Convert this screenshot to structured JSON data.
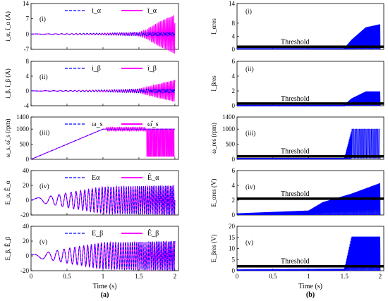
{
  "colors": {
    "measured": "#0000ff",
    "estimated": "#ff00ff",
    "threshold": "#000000",
    "residual": "#0000ff"
  },
  "x_axis": {
    "label": "Time (s)",
    "ticks": [
      "0",
      "0.5",
      "1",
      "1.5",
      "2"
    ],
    "range": [
      0,
      2.05
    ]
  },
  "captions": {
    "left": "(a)",
    "right": "(b)"
  },
  "chart_data": [
    {
      "type": "line",
      "panel": "(i)",
      "ylabel": "i_α, î_α (A)",
      "ylim": [
        -7,
        14
      ],
      "yticks": [
        "-7",
        "0",
        "7",
        "14"
      ],
      "series": [
        {
          "name": "i_α"
        },
        {
          "name": "î_α"
        }
      ],
      "x": [
        0,
        0.5,
        1.0,
        1.5,
        1.6,
        1.8,
        2.0
      ],
      "envelope": [
        0.05,
        0.2,
        0.4,
        0.8,
        2.0,
        6.0,
        9.0
      ]
    },
    {
      "type": "line",
      "panel": "(ii)",
      "ylabel": "i_β, î_β (A)",
      "ylim": [
        -4,
        8
      ],
      "yticks": [
        "-4",
        "0",
        "4",
        "8"
      ],
      "series": [
        {
          "name": "i_β"
        },
        {
          "name": "î_β"
        }
      ],
      "x": [
        0,
        0.5,
        1.0,
        1.5,
        1.6,
        1.8,
        2.0
      ],
      "envelope": [
        0.02,
        0.1,
        0.25,
        0.5,
        1.0,
        2.0,
        3.0
      ]
    },
    {
      "type": "line",
      "panel": "(iii)",
      "ylabel": "ω_s, ω̂_s (rpm)",
      "ylim": [
        0,
        1400
      ],
      "yticks": [
        "0",
        "500",
        "1000",
        "1400"
      ],
      "series": [
        {
          "name": "ω_s"
        },
        {
          "name": "ω̂_s"
        }
      ],
      "speed_profile": {
        "x": [
          0,
          1.0,
          2.0
        ],
        "y": [
          0,
          1000,
          1000
        ]
      },
      "estimate_oscillation": {
        "x_start": 1.6,
        "low": 100,
        "high": 1000
      }
    },
    {
      "type": "line",
      "panel": "(iv)",
      "ylabel": "E_α, Ê_α",
      "ylim": [
        -20,
        40
      ],
      "yticks": [
        "-20",
        "0",
        "20",
        "40"
      ],
      "series": [
        {
          "name": "Eα"
        },
        {
          "name": "Ê_α"
        }
      ],
      "x": [
        0,
        0.3,
        0.5,
        1.0,
        2.0
      ],
      "envelope": [
        2,
        6,
        10,
        18,
        20
      ]
    },
    {
      "type": "line",
      "panel": "(v)",
      "ylabel": "E_β, Ê_β",
      "ylim": [
        -20,
        40
      ],
      "yticks": [
        "-20",
        "0",
        "20",
        "40"
      ],
      "series": [
        {
          "name": "E_β"
        },
        {
          "name": "Ê_β"
        }
      ],
      "x": [
        0,
        0.3,
        0.5,
        1.0,
        2.0
      ],
      "envelope": [
        2,
        6,
        10,
        18,
        20
      ]
    },
    {
      "type": "line",
      "panel": "(i)",
      "ylabel": "I_αres",
      "ylim": [
        0,
        14
      ],
      "yticks": [
        "0",
        "4",
        "8",
        "14"
      ],
      "threshold": 0.8,
      "threshold_label": "Threshold",
      "residual": {
        "x": [
          0,
          1.5,
          1.6,
          1.8,
          2.0
        ],
        "peak": [
          0.3,
          0.3,
          3,
          7,
          8
        ]
      }
    },
    {
      "type": "line",
      "panel": "(ii)",
      "ylabel": "I_βres",
      "ylim": [
        0,
        6
      ],
      "yticks": [
        "0",
        "2",
        "4",
        "6"
      ],
      "threshold": 0.3,
      "threshold_label": "Threshold",
      "residual": {
        "x": [
          0,
          1.5,
          1.6,
          1.8,
          2.0
        ],
        "peak": [
          0.1,
          0.1,
          1.0,
          2.0,
          2.0
        ]
      }
    },
    {
      "type": "line",
      "panel": "(iii)",
      "ylabel": "ω_res (rpm)",
      "ylim": [
        0,
        1400
      ],
      "yticks": [
        "0",
        "500",
        "1000",
        "1400"
      ],
      "threshold": 100,
      "threshold_label": "Threshold",
      "residual": {
        "x": [
          0,
          1.5,
          1.6,
          2.0
        ],
        "peak": [
          40,
          40,
          1000,
          1000
        ]
      }
    },
    {
      "type": "line",
      "panel": "(iv)",
      "ylabel": "E_αres (V)",
      "ylim": [
        0,
        6
      ],
      "yticks": [
        "0",
        "2",
        "4",
        "6"
      ],
      "threshold": 2.2,
      "threshold_label": "Threshold",
      "residual": {
        "x": [
          0,
          1.0,
          1.2,
          1.6,
          2.0
        ],
        "peak": [
          0.2,
          0.6,
          1.8,
          3.0,
          4.5
        ]
      }
    },
    {
      "type": "line",
      "panel": "(v)",
      "ylabel": "E_βres (V)",
      "ylim": [
        0,
        20
      ],
      "yticks": [
        "0",
        "5",
        "10",
        "15",
        "20"
      ],
      "threshold": 2.0,
      "threshold_label": "Threshold",
      "residual": {
        "x": [
          0,
          1.5,
          1.6,
          2.0
        ],
        "peak": [
          0.5,
          0.8,
          16,
          16
        ]
      }
    }
  ]
}
